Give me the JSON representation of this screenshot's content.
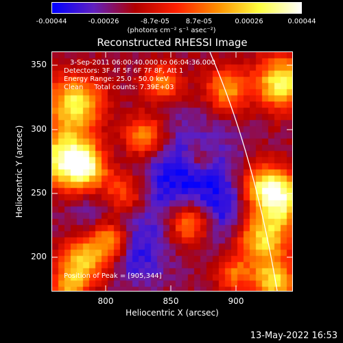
{
  "colorbar": {
    "tick_labels": [
      "-0.00044",
      "-0.00026",
      "-8.7e-05",
      "8.7e-05",
      "0.00026",
      "0.00044"
    ],
    "units": "(photons cm⁻² s⁻¹ asec⁻²)",
    "range": [
      -0.00044,
      0.00044
    ],
    "colormap": [
      "#0000ff",
      "#6020c0",
      "#b00000",
      "#ff2000",
      "#ff9000",
      "#ffff40",
      "#ffffff"
    ]
  },
  "plot": {
    "title": "Reconstructed RHESSI Image",
    "annotations": {
      "time_range": "3-Sep-2011 06:00:40.000 to 06:04:36.000",
      "detectors": "Detectors: 3F 4F 5F 6F 7F 8F, Att 1",
      "energy_range": "Energy Range: 25.0 - 50.0 keV",
      "method_counts": "Clean     Total counts: 7.39E+03",
      "peak_position": "Position of Peak = [905,344]"
    },
    "xlabel": "Heliocentric X (arcsec)",
    "ylabel": "Heliocentric Y (arcsec)",
    "xticks": [
      "800",
      "850",
      "900"
    ],
    "yticks": [
      "350",
      "300",
      "250",
      "200"
    ],
    "xlim": [
      760,
      944
    ],
    "ylim": [
      164,
      362
    ],
    "limb_color": "#ffffff"
  },
  "footer": {
    "timestamp": "13-May-2022 16:53"
  }
}
